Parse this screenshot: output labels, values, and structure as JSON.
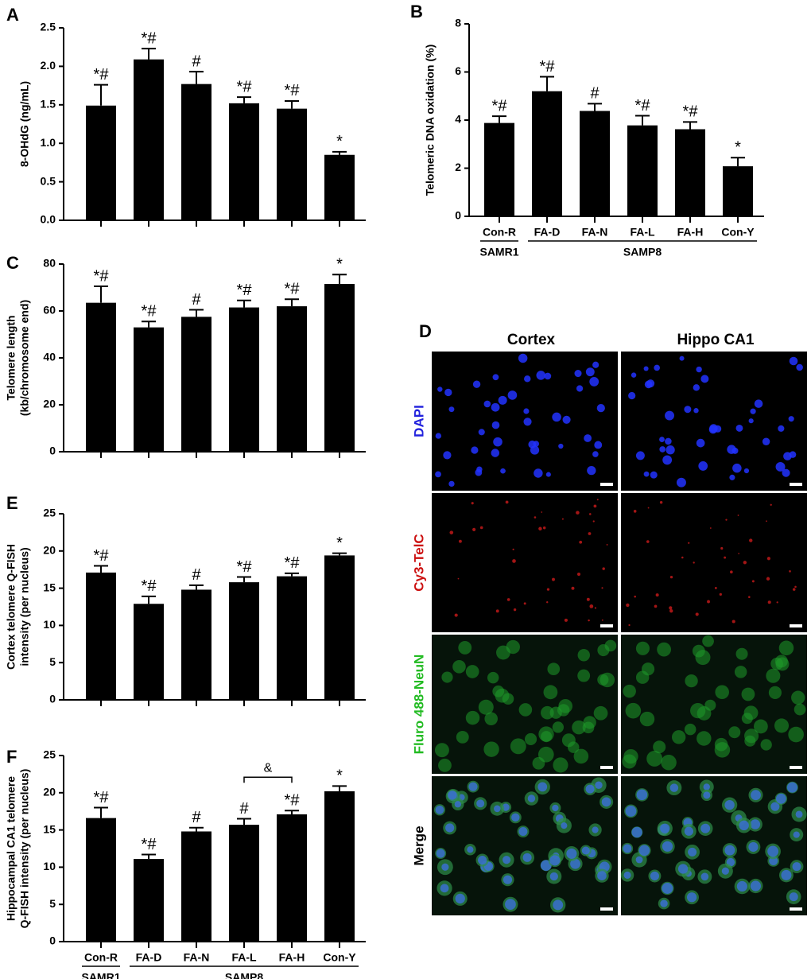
{
  "chart_data": [
    {
      "type": "bar",
      "panel": "A",
      "ylabel": [
        "8-OHdG (ng/mL)"
      ],
      "color": "#000000",
      "categories": [
        null,
        null,
        null,
        null,
        null,
        null
      ],
      "values": [
        1.49,
        2.09,
        1.77,
        1.52,
        1.45,
        0.85
      ],
      "errors": [
        0.27,
        0.14,
        0.16,
        0.08,
        0.1,
        0.04
      ],
      "annotations": [
        "*#",
        "*#",
        "#",
        "*#",
        "*#",
        "*"
      ],
      "ylim": [
        0,
        2.5
      ],
      "yticks": [
        {
          "value": 0,
          "label": "0.0"
        },
        0.5,
        {
          "value": 1,
          "label": "1.0"
        },
        1.5,
        {
          "value": 2,
          "label": "2.0"
        },
        2.5
      ]
    },
    {
      "type": "bar",
      "panel": "B",
      "ylabel": [
        "Telomeric DNA oxidation (%)"
      ],
      "color": "#000000",
      "categories": [
        "Con-R",
        "FA-D",
        "FA-N",
        "FA-L",
        "FA-H",
        "Con-Y"
      ],
      "groups": [
        {
          "label": "SAMR1",
          "from": 0,
          "to": 0
        },
        {
          "label": "SAMP8",
          "from": 1,
          "to": 5
        }
      ],
      "values": [
        3.88,
        5.2,
        4.38,
        3.78,
        3.62,
        2.08
      ],
      "errors": [
        0.28,
        0.6,
        0.3,
        0.4,
        0.3,
        0.36
      ],
      "annotations": [
        "*#",
        "*#",
        "#",
        "*#",
        "*#",
        "*"
      ],
      "ylim": [
        0,
        8
      ],
      "yticks": [
        0,
        2,
        4,
        6,
        8
      ]
    },
    {
      "type": "bar",
      "panel": "C",
      "ylabel": [
        "Telomere length",
        "(kb/chromosome end)"
      ],
      "color": "#000000",
      "categories": [
        null,
        null,
        null,
        null,
        null,
        null
      ],
      "values": [
        63.5,
        53,
        57.5,
        61.5,
        62,
        71.5
      ],
      "errors": [
        7,
        2.5,
        3,
        3,
        3,
        4
      ],
      "annotations": [
        "*#",
        "*#",
        "#",
        "*#",
        "*#",
        "*"
      ],
      "ylim": [
        0,
        80
      ],
      "yticks": [
        0,
        20,
        40,
        60,
        80
      ]
    },
    {
      "type": "bar",
      "panel": "E",
      "ylabel": [
        "Cortex telomere Q-FISH",
        "intensity (per nucleus)"
      ],
      "color": "#000000",
      "categories": [
        null,
        null,
        null,
        null,
        null,
        null
      ],
      "values": [
        17.1,
        12.9,
        14.8,
        15.8,
        16.6,
        19.4
      ],
      "errors": [
        0.9,
        1,
        0.6,
        0.7,
        0.4,
        0.3
      ],
      "annotations": [
        "*#",
        "*#",
        "#",
        "*#",
        "*#",
        "*"
      ],
      "ylim": [
        0,
        25
      ],
      "yticks": [
        0,
        5,
        10,
        15,
        20,
        25
      ]
    },
    {
      "type": "bar",
      "panel": "F",
      "ylabel": [
        "Hippocampal CA1 telomere",
        "Q-FISH intensity (per nucleus)"
      ],
      "color": "#000000",
      "categories": [
        "Con-R",
        "FA-D",
        "FA-N",
        "FA-L",
        "FA-H",
        "Con-Y"
      ],
      "groups": [
        {
          "label": "SAMR1",
          "from": 0,
          "to": 0
        },
        {
          "label": "SAMP8",
          "from": 1,
          "to": 5
        }
      ],
      "values": [
        16.6,
        11.1,
        14.8,
        15.7,
        17.1,
        20.2
      ],
      "errors": [
        1.4,
        0.6,
        0.5,
        0.8,
        0.5,
        0.7
      ],
      "annotations": [
        "*#",
        "*#",
        "#",
        "#",
        "*#",
        "*"
      ],
      "brackets": [
        {
          "from": 3,
          "to": 4,
          "label": "&"
        }
      ],
      "ylim": [
        0,
        25
      ],
      "yticks": [
        0,
        5,
        10,
        15,
        20,
        25
      ]
    }
  ],
  "panel_d": {
    "panel": "D",
    "columns": [
      "Cortex",
      "Hippo CA1"
    ],
    "rows": [
      "DAPI",
      "Cy3-TelC",
      "Fluro 488-NeuN",
      "Merge"
    ]
  }
}
